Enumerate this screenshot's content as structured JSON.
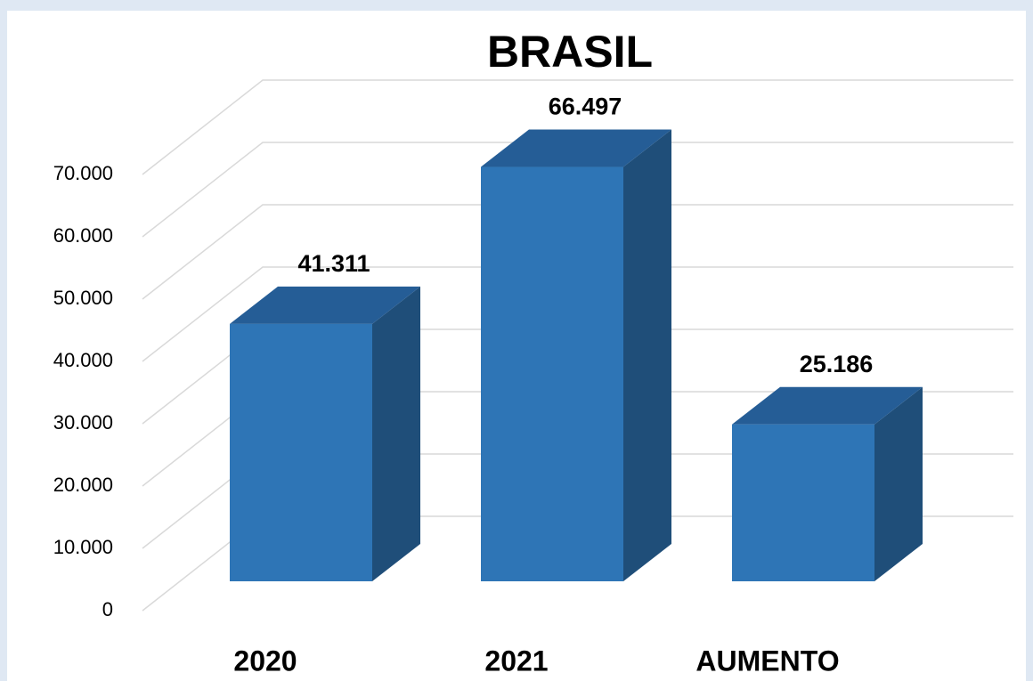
{
  "chart_data": {
    "type": "bar3d",
    "title": "BRASIL",
    "categories": [
      "2020",
      "2021",
      "AUMENTO"
    ],
    "values": [
      41311,
      66497,
      25186
    ],
    "value_labels": [
      "41.311",
      "66.497",
      "25.186"
    ],
    "color": "#2e75b6",
    "ylim": [
      0,
      70000
    ],
    "yticks": [
      0,
      {
        "value": 10000,
        "label": "10.000"
      },
      {
        "value": 20000,
        "label": "20.000"
      },
      {
        "value": 30000,
        "label": "30.000"
      },
      {
        "value": 40000,
        "label": "40.000"
      },
      {
        "value": 50000,
        "label": "50.000"
      },
      {
        "value": 60000,
        "label": "60.000"
      },
      {
        "value": 70000,
        "label": "70.000"
      }
    ],
    "grid": true
  }
}
